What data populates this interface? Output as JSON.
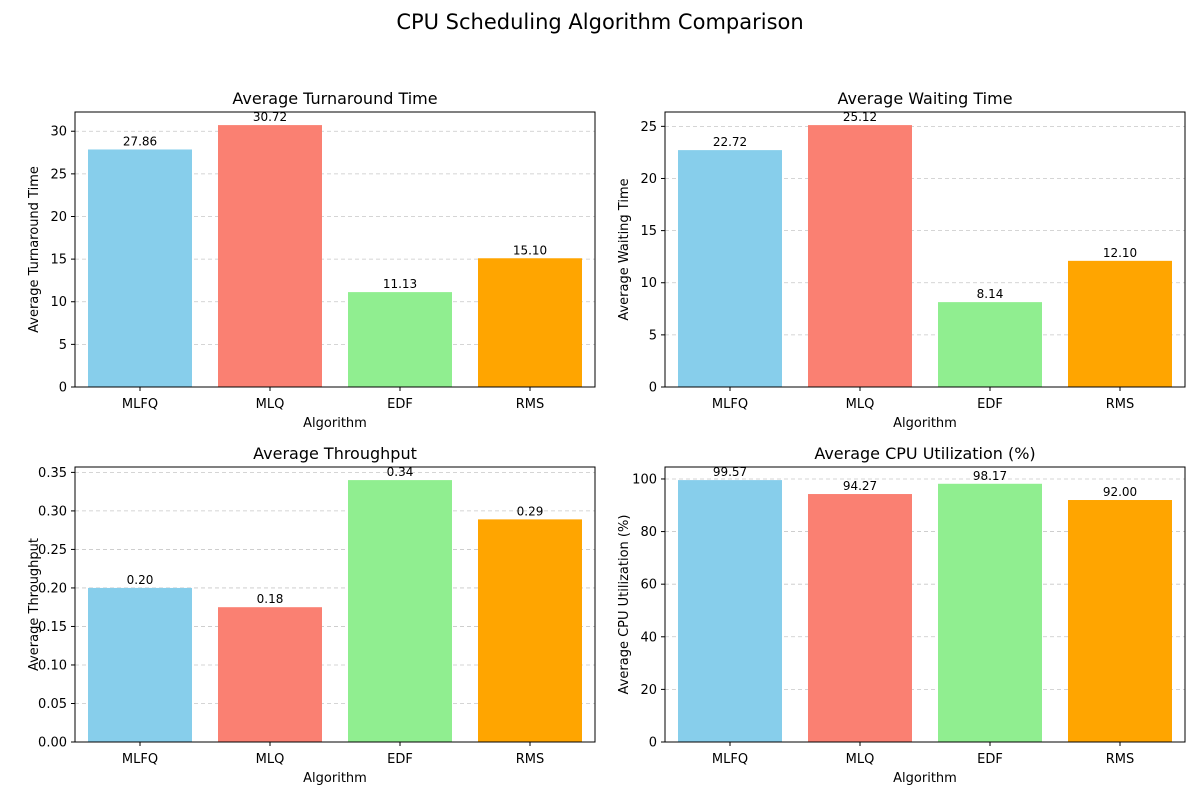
{
  "figure_title": "CPU Scheduling Algorithm Comparison",
  "chart_data": [
    {
      "type": "bar",
      "title": "Average Turnaround Time",
      "xlabel": "Algorithm",
      "ylabel": "Average Turnaround Time",
      "categories": [
        "MLFQ",
        "MLQ",
        "EDF",
        "RMS"
      ],
      "values": [
        27.86,
        30.72,
        11.13,
        15.1
      ],
      "value_labels": [
        "27.86",
        "30.72",
        "11.13",
        "15.10"
      ],
      "colors": [
        "#87CEEB",
        "#FA8072",
        "#90EE90",
        "#FFA500"
      ],
      "ylim": [
        0,
        32.256
      ],
      "yticks": [
        0,
        5,
        10,
        15,
        20,
        25,
        30
      ],
      "ytick_labels": [
        "0",
        "5",
        "10",
        "15",
        "20",
        "25",
        "30"
      ],
      "grid": "y-dashed"
    },
    {
      "type": "bar",
      "title": "Average Waiting Time",
      "xlabel": "Algorithm",
      "ylabel": "Average Waiting Time",
      "categories": [
        "MLFQ",
        "MLQ",
        "EDF",
        "RMS"
      ],
      "values": [
        22.72,
        25.12,
        8.14,
        12.1
      ],
      "value_labels": [
        "22.72",
        "25.12",
        "8.14",
        "12.10"
      ],
      "colors": [
        "#87CEEB",
        "#FA8072",
        "#90EE90",
        "#FFA500"
      ],
      "ylim": [
        0,
        26.376
      ],
      "yticks": [
        0,
        5,
        10,
        15,
        20,
        25
      ],
      "ytick_labels": [
        "0",
        "5",
        "10",
        "15",
        "20",
        "25"
      ],
      "grid": "y-dashed"
    },
    {
      "type": "bar",
      "title": "Average Throughput",
      "xlabel": "Algorithm",
      "ylabel": "Average Throughput",
      "categories": [
        "MLFQ",
        "MLQ",
        "EDF",
        "RMS"
      ],
      "values": [
        0.2,
        0.175,
        0.34,
        0.289
      ],
      "value_labels": [
        "0.20",
        "0.18",
        "0.34",
        "0.29"
      ],
      "colors": [
        "#87CEEB",
        "#FA8072",
        "#90EE90",
        "#FFA500"
      ],
      "ylim": [
        0,
        0.357
      ],
      "yticks": [
        0,
        0.05,
        0.1,
        0.15,
        0.2,
        0.25,
        0.3,
        0.35
      ],
      "ytick_labels": [
        "0.00",
        "0.05",
        "0.10",
        "0.15",
        "0.20",
        "0.25",
        "0.30",
        "0.35"
      ],
      "grid": "y-dashed"
    },
    {
      "type": "bar",
      "title": "Average CPU Utilization (%)",
      "xlabel": "Algorithm",
      "ylabel": "Average CPU Utilization (%)",
      "categories": [
        "MLFQ",
        "MLQ",
        "EDF",
        "RMS"
      ],
      "values": [
        99.57,
        94.27,
        98.17,
        92.0
      ],
      "value_labels": [
        "99.57",
        "94.27",
        "98.17",
        "92.00"
      ],
      "colors": [
        "#87CEEB",
        "#FA8072",
        "#90EE90",
        "#FFA500"
      ],
      "ylim": [
        0,
        104.55
      ],
      "yticks": [
        0,
        20,
        40,
        60,
        80,
        100
      ],
      "ytick_labels": [
        "0",
        "20",
        "40",
        "60",
        "80",
        "100"
      ],
      "grid": "y-dashed"
    }
  ]
}
